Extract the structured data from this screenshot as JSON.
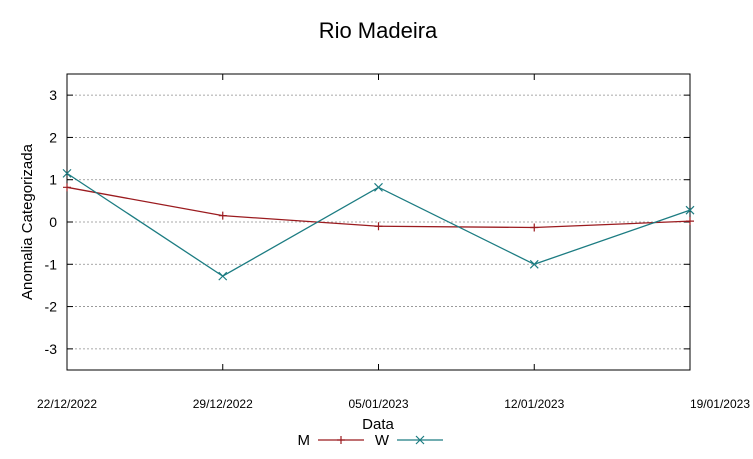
{
  "chart_data": {
    "type": "line",
    "title": "Rio Madeira",
    "xlabel": "Data",
    "ylabel": "Anomalia Categorizada",
    "categories": [
      "22/12/2022",
      "29/12/2022",
      "05/01/2023",
      "12/01/2023",
      "19/01/2023"
    ],
    "ylim": [
      -3.5,
      3.5
    ],
    "yticks": [
      3,
      2,
      1,
      0,
      -1,
      -2,
      -3
    ],
    "grid": true,
    "legend_position": "bottom-center",
    "series": [
      {
        "name": "M",
        "color": "#9b1b1f",
        "marker": "plus",
        "values": [
          0.82,
          0.15,
          -0.1,
          -0.13,
          0.02
        ]
      },
      {
        "name": "W",
        "color": "#1c7c82",
        "marker": "cross",
        "values": [
          1.15,
          -1.28,
          0.82,
          -1.0,
          0.28
        ]
      }
    ]
  }
}
